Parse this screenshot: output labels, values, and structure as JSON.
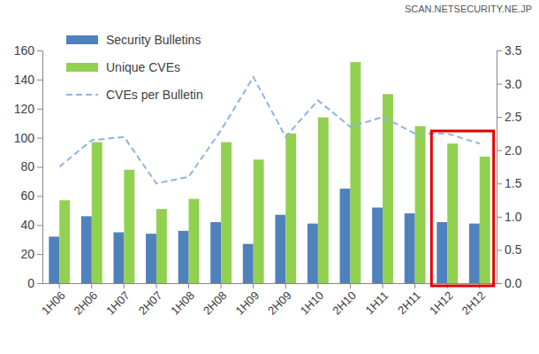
{
  "chart_data": {
    "type": "bar",
    "categories": [
      "1H06",
      "2H06",
      "1H07",
      "2H07",
      "1H08",
      "2H08",
      "1H09",
      "2H09",
      "1H10",
      "2H10",
      "1H11",
      "2H11",
      "1H12",
      "2H12"
    ],
    "series": [
      {
        "name": "Security Bulletins",
        "color": "#4f81bd",
        "values": [
          32,
          46,
          35,
          34,
          36,
          42,
          27,
          47,
          41,
          65,
          52,
          48,
          42,
          41
        ]
      },
      {
        "name": "Unique CVEs",
        "color": "#92d050",
        "values": [
          57,
          97,
          78,
          51,
          58,
          97,
          85,
          103,
          114,
          152,
          130,
          108,
          96,
          87
        ]
      },
      {
        "name": "CVEs per Bulletin",
        "type": "line",
        "axis": "y2",
        "color": "#8eb4e3",
        "line_style": "dashed",
        "values": [
          1.75,
          2.15,
          2.2,
          1.5,
          1.6,
          2.3,
          3.1,
          2.2,
          2.75,
          2.35,
          2.5,
          2.25,
          2.25,
          2.1
        ]
      }
    ],
    "ylim": [
      0,
      160
    ],
    "yticks": [
      0,
      20,
      40,
      60,
      80,
      100,
      120,
      140,
      160
    ],
    "y2lim": [
      0,
      3.5
    ],
    "y2ticks": [
      {
        "value": 0,
        "label": "0.0"
      },
      0.5,
      {
        "value": 1,
        "label": "1.0"
      },
      1.5,
      {
        "value": 2,
        "label": "2.0"
      },
      2.5,
      {
        "value": 3,
        "label": "3.0"
      },
      3.5
    ],
    "grid": false,
    "legend": "upper left",
    "annotations": [
      "SCAN.NETSECURITY.NE.JP"
    ]
  }
}
